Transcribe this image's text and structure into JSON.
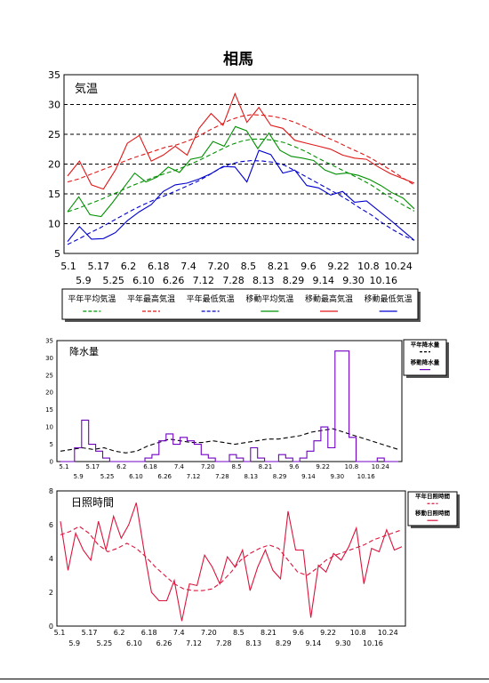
{
  "page": {
    "title": "相馬"
  },
  "colors": {
    "green": "#009000",
    "red": "#e01818",
    "blue": "#0000d0",
    "purple": "#7000c0",
    "crimson": "#dc143c",
    "black": "#000000"
  },
  "chart_data": [
    {
      "type": "line",
      "label": "気温",
      "ylim": [
        5,
        35
      ],
      "yticks": [
        5,
        10,
        15,
        20,
        25,
        30,
        35
      ],
      "grid": "dashed horizontal",
      "xticks_row1": [
        "5.1",
        "5.17",
        "6.2",
        "6.18",
        "7.4",
        "7.20",
        "8.5",
        "8.21",
        "9.6",
        "9.22",
        "10.8",
        "10.24"
      ],
      "xticks_row2": [
        "5.9",
        "5.25",
        "6.10",
        "6.26",
        "7.12",
        "7.28",
        "8.13",
        "8.29",
        "9.14",
        "9.30",
        "10.16"
      ],
      "legend_placement": "bottom",
      "series": [
        {
          "name": "平年平均気温",
          "style": "dashed",
          "color": "green",
          "values": [
            12,
            12.6,
            13.3,
            14,
            14.8,
            15.6,
            16.4,
            17.1,
            17.8,
            18.4,
            19,
            19.7,
            20.5,
            21.4,
            22.3,
            23.2,
            23.8,
            24.2,
            24.2,
            24,
            23.6,
            22.9,
            22.1,
            21.1,
            20.2,
            19.3,
            18.4,
            17.5,
            16.5,
            15.3,
            14.2,
            13.1,
            12.1
          ]
        },
        {
          "name": "平年最高気温",
          "style": "dashed",
          "color": "red",
          "values": [
            17,
            17.5,
            18.2,
            18.9,
            19.6,
            20.3,
            21,
            21.6,
            22.2,
            22.8,
            23.2,
            23.8,
            24.6,
            25.6,
            26.5,
            27.4,
            28,
            28.3,
            28.2,
            28,
            27.6,
            27,
            26.2,
            25.3,
            24.4,
            23.6,
            22.7,
            21.9,
            21,
            19.9,
            18.8,
            17.6,
            16.5
          ]
        },
        {
          "name": "平年最低気温",
          "style": "dashed",
          "color": "blue",
          "values": [
            6.5,
            7.4,
            8.4,
            9.3,
            10.3,
            11.3,
            12.3,
            13.2,
            14,
            14.7,
            15.5,
            16.3,
            17.1,
            18.1,
            19.2,
            20,
            20.4,
            20.6,
            20.5,
            20.3,
            19.8,
            18.9,
            17.9,
            16.9,
            15.9,
            14.9,
            13.8,
            12.6,
            11.5,
            10.2,
            9,
            8,
            7.2
          ]
        },
        {
          "name": "移動平均気温",
          "style": "solid",
          "color": "green",
          "values": [
            12,
            14.5,
            11.5,
            11.2,
            13.5,
            16,
            18.5,
            17,
            17.8,
            19.5,
            18.6,
            20.8,
            21.2,
            23.8,
            23,
            26.3,
            25.6,
            22.6,
            25.2,
            22.3,
            21.3,
            21,
            20.6,
            19,
            18.3,
            18.5,
            18.1,
            17.4,
            16.4,
            15.2,
            14.3,
            12.5
          ]
        },
        {
          "name": "移動最高気温",
          "style": "solid",
          "color": "red",
          "values": [
            18,
            20.5,
            16.5,
            15.8,
            19,
            23.5,
            24.8,
            20.5,
            21.5,
            23,
            21.5,
            26,
            28.5,
            26.5,
            31.8,
            27,
            29.5,
            26.5,
            26,
            24,
            23.5,
            23,
            22.5,
            21.5,
            21,
            20.8,
            19.5,
            18.4,
            17.6,
            16.8
          ]
        },
        {
          "name": "移動最低気温",
          "style": "solid",
          "color": "blue",
          "values": [
            7,
            9.5,
            7.4,
            7.5,
            8.5,
            10.5,
            12,
            13.2,
            15.4,
            16.5,
            16.8,
            17.5,
            18.4,
            19.6,
            19.5,
            17,
            22.3,
            21.6,
            18.5,
            19,
            16.4,
            16,
            14.8,
            15.4,
            13.6,
            13.8,
            12.2,
            10.6,
            8.9,
            7.2
          ]
        }
      ]
    },
    {
      "type": "line",
      "label": "降水量",
      "ylim": [
        0,
        35
      ],
      "yticks": [
        0,
        5,
        10,
        15,
        20,
        25,
        30,
        35
      ],
      "xticks_row1": [
        "5.1",
        "5.17",
        "6.2",
        "6.18",
        "7.4",
        "7.20",
        "8.5",
        "8.21",
        "9.6",
        "9.22",
        "10.8",
        "10.24"
      ],
      "xticks_row2": [
        "5.9",
        "5.25",
        "6.10",
        "6.26",
        "7.12",
        "7.28",
        "8.13",
        "8.29",
        "9.14",
        "9.30",
        "10.16"
      ],
      "legend_placement": "right",
      "series": [
        {
          "name": "平年降水量",
          "style": "dashed",
          "color": "black",
          "values": [
            3,
            3.5,
            4,
            3.5,
            4,
            3,
            2.5,
            3,
            4.5,
            5.5,
            6.5,
            6,
            5.5,
            5.5,
            6,
            5.5,
            5,
            5.5,
            6,
            6.5,
            6.5,
            7,
            7.5,
            8.5,
            9,
            9.5,
            8.5,
            7.5,
            6.5,
            5.5,
            4.5,
            3.5
          ]
        },
        {
          "name": "移動降水量",
          "style": "solid",
          "color": "purple",
          "values": [
            0,
            0,
            4,
            12,
            5,
            3,
            1,
            0,
            0,
            0,
            0,
            0,
            1,
            2,
            6,
            8,
            5,
            7,
            6,
            5,
            2,
            1,
            0,
            0,
            2,
            1,
            0,
            4,
            1,
            0,
            0,
            2,
            1,
            0,
            1,
            3,
            6,
            10,
            4,
            32,
            32,
            7,
            0,
            0,
            0,
            1,
            0,
            0
          ]
        }
      ]
    },
    {
      "type": "line",
      "label": "日照時間",
      "ylim": [
        0,
        8
      ],
      "yticks": [
        0,
        2,
        4,
        6,
        8
      ],
      "xticks_row1": [
        "5.1",
        "5.17",
        "6.2",
        "6.18",
        "7.4",
        "7.20",
        "8.5",
        "8.21",
        "9.6",
        "9.22",
        "10.8",
        "10.24"
      ],
      "xticks_row2": [
        "5.9",
        "5.25",
        "6.10",
        "6.26",
        "7.12",
        "7.28",
        "8.13",
        "8.29",
        "9.14",
        "9.30",
        "10.16"
      ],
      "legend_placement": "right",
      "series": [
        {
          "name": "平年日照時間",
          "style": "dashed",
          "color": "crimson",
          "values": [
            5.4,
            5.6,
            5.9,
            5.5,
            4.8,
            4.4,
            4.6,
            4.9,
            4.6,
            4.1,
            3.5,
            3,
            2.5,
            2.2,
            2.1,
            2.1,
            2.2,
            2.6,
            3.2,
            3.9,
            4.3,
            4.6,
            4.8,
            4.6,
            3.9,
            3.2,
            3,
            3.4,
            3.9,
            4.2,
            4.4,
            4.6,
            4.8,
            5.1,
            5.3,
            5.5,
            5.7
          ]
        },
        {
          "name": "移動日照時間",
          "style": "solid",
          "color": "crimson",
          "values": [
            6.2,
            3.3,
            5.5,
            4.5,
            3.9,
            6.2,
            4.5,
            6.5,
            5.2,
            6,
            7.3,
            4.5,
            2,
            1.5,
            1.5,
            2.7,
            0.3,
            2.5,
            2.4,
            4.2,
            3.5,
            2.5,
            4.1,
            3.5,
            4.5,
            2.1,
            3.5,
            4.5,
            3.3,
            2.8,
            6.8,
            4.5,
            4.5,
            0.5,
            3.6,
            3.2,
            4.3,
            3.9,
            4.7,
            5.8,
            2.5,
            4.6,
            4.4,
            5.7,
            4.5,
            4.7
          ]
        }
      ]
    }
  ]
}
